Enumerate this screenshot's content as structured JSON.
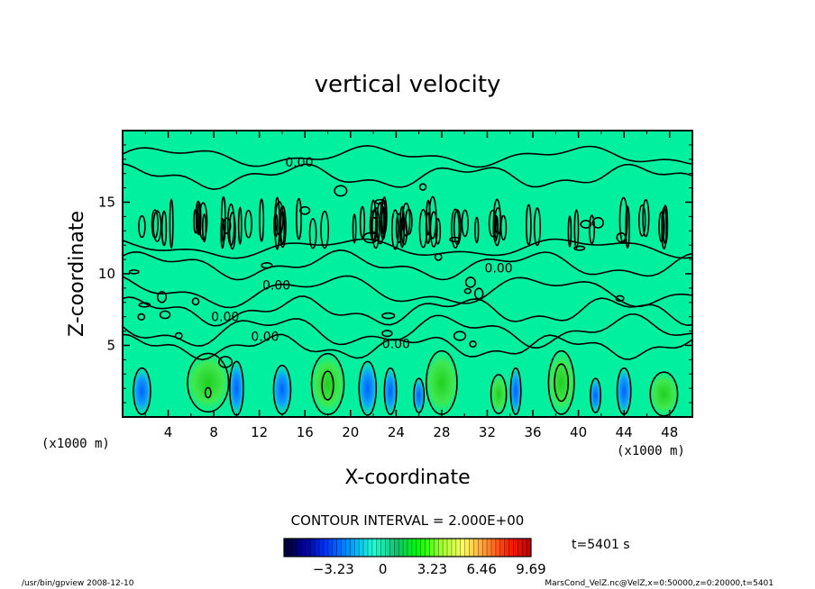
{
  "chart_data": {
    "type": "heatmap",
    "title": "vertical velocity",
    "xlabel": "X-coordinate",
    "ylabel": "Z-coordinate",
    "x_unit_left": "(x1000 m)",
    "x_unit_right": "(x1000 m)",
    "xlim": [
      0,
      50
    ],
    "ylim": [
      0,
      20
    ],
    "x_ticks": [
      4,
      8,
      12,
      16,
      20,
      24,
      28,
      32,
      36,
      40,
      44,
      48
    ],
    "x_tick_labels": [
      "4",
      "8",
      "12",
      "16",
      "20",
      "24",
      "28",
      "32",
      "36",
      "40",
      "44",
      "48"
    ],
    "y_ticks": [
      5,
      10,
      15
    ],
    "y_tick_labels": [
      "5",
      "10",
      "15"
    ],
    "contour_labels": [
      {
        "text": "0.00",
        "x": 15.5,
        "z": 17.5
      },
      {
        "text": "0.00",
        "x": 13.5,
        "z": 8.9
      },
      {
        "text": "0.00",
        "x": 33.0,
        "z": 10.1
      },
      {
        "text": "0.00",
        "x": 9.0,
        "z": 6.7
      },
      {
        "text": "0.00",
        "x": 12.5,
        "z": 5.3
      },
      {
        "text": "0.00",
        "x": 24.0,
        "z": 4.8
      }
    ],
    "contour_interval_text": "CONTOUR INTERVAL = 2.000E+00",
    "colorbar": {
      "min": -6.46,
      "max": 9.69,
      "tick_values": [
        -3.23,
        0,
        3.23,
        6.46,
        9.69
      ],
      "tick_labels": [
        "−3.23",
        "0",
        "3.23",
        "6.46",
        "9.69"
      ],
      "colors": [
        "#000030",
        "#0000a0",
        "#0040ff",
        "#00a0ff",
        "#20ffd0",
        "#10c070",
        "#00ff00",
        "#a0ff30",
        "#ffff60",
        "#ff9030",
        "#ff2000",
        "#c00000"
      ]
    },
    "time_label": "t=5401 s",
    "grid": false
  },
  "footer": {
    "left": "/usr/bin/gpview   2008-12-10",
    "right": "MarsCond_VelZ.nc@VelZ,x=0:50000,z=0:20000,t=5401"
  },
  "colors": {
    "background_field": "#00f0a0",
    "updraft": "#30e030",
    "downdraft": "#1098ff"
  }
}
